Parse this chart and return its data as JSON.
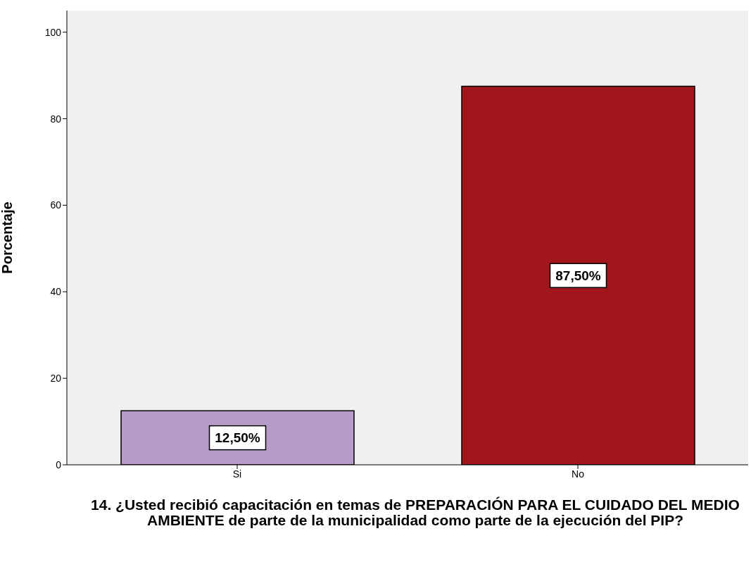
{
  "chart_data": {
    "type": "bar",
    "xlabel": "14. ¿Usted recibió capacitación en temas de PREPARACIÓN PARA EL CUIDADO DEL MEDIO AMBIENTE de parte de la municipalidad como parte de la ejecución del PIP?",
    "ylabel": "Porcentaje",
    "categories": [
      "Si",
      "No"
    ],
    "values": [
      12.5,
      87.5
    ],
    "colors": [
      "#b79bc8",
      "#a0161b"
    ],
    "value_labels": [
      "12,50%",
      "87,50%"
    ],
    "ylim": [
      0,
      105
    ],
    "yticks": [
      0,
      20,
      40,
      60,
      80,
      100
    ]
  }
}
